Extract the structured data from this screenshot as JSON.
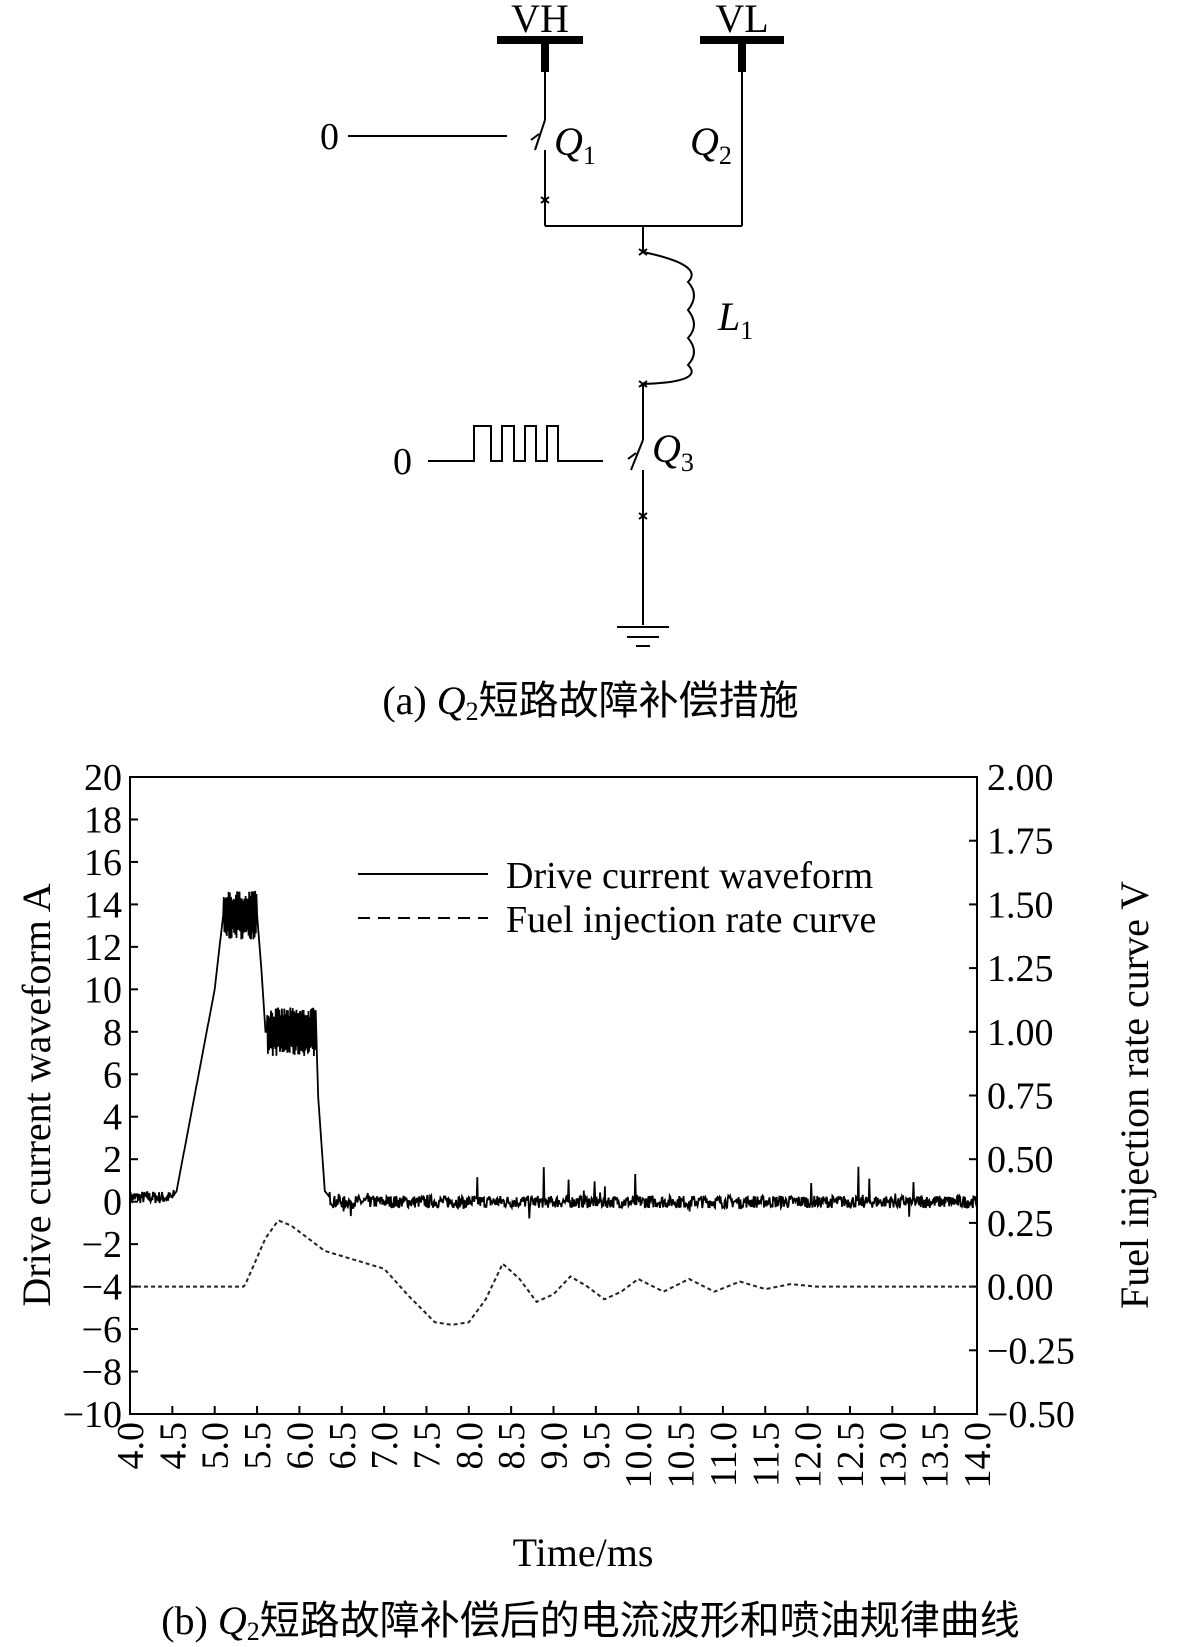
{
  "circuit": {
    "terminal_high": "VH",
    "terminal_low": "VL",
    "q1_input": "0",
    "q3_input": "0",
    "q1": {
      "sym": "Q",
      "sub": "1"
    },
    "q2": {
      "sym": "Q",
      "sub": "2"
    },
    "q3": {
      "sym": "Q",
      "sub": "3"
    },
    "l1": {
      "sym": "L",
      "sub": "1"
    }
  },
  "caption_a": {
    "prefix": "(a) ",
    "sym": "Q",
    "sub": "2",
    "text": "短路故障补偿措施"
  },
  "caption_b": {
    "prefix": "(b) ",
    "sym": "Q",
    "sub": "2",
    "text": "短路故障补偿后的电流波形和喷油规律曲线"
  },
  "chart_data": {
    "type": "line",
    "xlabel": "Time/ms",
    "ylabel": "Drive current waveform A",
    "y2label": "Fuel injection rate curve V",
    "xlim": [
      4.0,
      14.0
    ],
    "ylim": [
      -10,
      20
    ],
    "y2lim": [
      -0.5,
      2.0
    ],
    "xticks": [
      "4.0",
      "4.5",
      "5.0",
      "5.5",
      "6.0",
      "6.5",
      "7.0",
      "7.5",
      "8.0",
      "8.5",
      "9.0",
      "9.5",
      "10.0",
      "10.5",
      "11.0",
      "11.5",
      "12.0",
      "12.5",
      "13.0",
      "13.5",
      "14.0"
    ],
    "yticks": [
      "20",
      "18",
      "16",
      "14",
      "12",
      "10",
      "8",
      "6",
      "4",
      "2",
      "0",
      "−2",
      "−4",
      "−6",
      "−8",
      "−10"
    ],
    "y2ticks": [
      "2.00",
      "1.75",
      "1.50",
      "1.25",
      "1.00",
      "0.75",
      "0.50",
      "0.25",
      "0.00",
      "−0.25",
      "−0.50"
    ],
    "legend_position": "top-right",
    "series": [
      {
        "name": "Drive current waveform",
        "style": "solid",
        "axis": "left",
        "x": [
          4.0,
          4.5,
          4.55,
          5.0,
          5.1,
          5.2,
          5.3,
          5.4,
          5.5,
          5.55,
          5.6,
          5.8,
          6.0,
          6.2,
          6.22,
          6.3,
          6.4,
          7.0,
          8.0,
          9.0,
          10.0,
          11.0,
          12.0,
          13.0,
          14.0
        ],
        "y": [
          0.2,
          0.2,
          0.5,
          10.0,
          13.5,
          13.5,
          13.5,
          13.5,
          13.5,
          11.0,
          8.0,
          8.0,
          8.0,
          8.0,
          5.0,
          0.5,
          0.0,
          0.0,
          0.0,
          0.0,
          0.0,
          0.0,
          0.0,
          0.0,
          0.0
        ]
      },
      {
        "name": "Fuel injection rate curve",
        "style": "dashed",
        "axis": "right",
        "x": [
          4.0,
          5.0,
          5.35,
          5.6,
          5.75,
          5.9,
          6.1,
          6.3,
          6.6,
          7.0,
          7.3,
          7.6,
          7.8,
          8.0,
          8.2,
          8.4,
          8.6,
          8.8,
          9.0,
          9.2,
          9.4,
          9.6,
          9.8,
          10.0,
          10.3,
          10.6,
          10.9,
          11.2,
          11.5,
          11.8,
          12.1,
          12.5,
          13.0,
          13.5,
          14.0
        ],
        "y": [
          0.0,
          0.0,
          0.0,
          0.19,
          0.26,
          0.24,
          0.19,
          0.14,
          0.11,
          0.07,
          -0.04,
          -0.14,
          -0.15,
          -0.14,
          -0.05,
          0.09,
          0.03,
          -0.06,
          -0.03,
          0.04,
          0.0,
          -0.05,
          -0.02,
          0.03,
          -0.02,
          0.03,
          -0.02,
          0.02,
          -0.01,
          0.01,
          0.0,
          0.0,
          0.0,
          0.0,
          0.0
        ]
      }
    ]
  }
}
